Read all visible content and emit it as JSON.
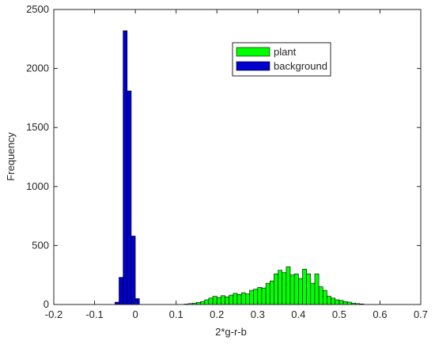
{
  "chart_data": {
    "type": "bar",
    "subtype": "histogram",
    "xlabel": "2*g-r-b",
    "ylabel": "Frequency",
    "xlim": [
      -0.2,
      0.7
    ],
    "ylim": [
      0,
      2500
    ],
    "xticks": [
      "-0.2",
      "-0.1",
      "0",
      "0.1",
      "0.2",
      "0.3",
      "0.4",
      "0.5",
      "0.6",
      "0.7"
    ],
    "yticks": [
      "0",
      "500",
      "1000",
      "1500",
      "2000",
      "2500"
    ],
    "legend_position": "top-center",
    "series": [
      {
        "name": "plant",
        "color": "#00ff00",
        "bin_width": 0.01,
        "bins": [
          [
            0.12,
            4
          ],
          [
            0.13,
            8
          ],
          [
            0.14,
            12
          ],
          [
            0.15,
            18
          ],
          [
            0.16,
            25
          ],
          [
            0.17,
            40
          ],
          [
            0.18,
            55
          ],
          [
            0.19,
            70
          ],
          [
            0.2,
            60
          ],
          [
            0.21,
            75
          ],
          [
            0.22,
            65
          ],
          [
            0.23,
            80
          ],
          [
            0.24,
            95
          ],
          [
            0.25,
            85
          ],
          [
            0.26,
            100
          ],
          [
            0.27,
            90
          ],
          [
            0.28,
            120
          ],
          [
            0.29,
            130
          ],
          [
            0.3,
            145
          ],
          [
            0.31,
            140
          ],
          [
            0.32,
            180
          ],
          [
            0.33,
            200
          ],
          [
            0.34,
            260
          ],
          [
            0.35,
            290
          ],
          [
            0.36,
            270
          ],
          [
            0.37,
            320
          ],
          [
            0.38,
            250
          ],
          [
            0.39,
            260
          ],
          [
            0.4,
            220
          ],
          [
            0.41,
            300
          ],
          [
            0.42,
            260
          ],
          [
            0.43,
            180
          ],
          [
            0.44,
            260
          ],
          [
            0.45,
            150
          ],
          [
            0.46,
            120
          ],
          [
            0.47,
            70
          ],
          [
            0.48,
            55
          ],
          [
            0.49,
            40
          ],
          [
            0.5,
            35
          ],
          [
            0.51,
            25
          ],
          [
            0.52,
            20
          ],
          [
            0.53,
            12
          ],
          [
            0.54,
            8
          ],
          [
            0.55,
            5
          ]
        ]
      },
      {
        "name": "background",
        "color": "#0000cc",
        "bin_width": 0.01,
        "bins": [
          [
            -0.05,
            20
          ],
          [
            -0.04,
            230
          ],
          [
            -0.03,
            2320
          ],
          [
            -0.02,
            1810
          ],
          [
            -0.01,
            580
          ],
          [
            0.0,
            50
          ]
        ]
      }
    ]
  }
}
